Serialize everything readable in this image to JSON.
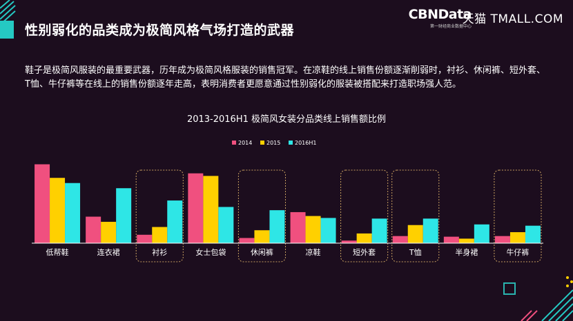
{
  "header": {
    "title": "性别弱化的品类成为极简风格气场打造的武器",
    "brand_main": "CBNData",
    "brand_sub": "第一财经商业数据中心",
    "partner": "天猫 TMALL.COM"
  },
  "body": {
    "text": "鞋子是极简风服装的最重要武器，历年成为极简风格服装的销售冠军。在凉鞋的线上销售份额逐渐削弱时，衬衫、休闲裤、短外套、T恤、牛仔裤等在线上的销售份额逐年走高，表明消费者更愿意通过性别弱化的服装被搭配来打造职场强人范。"
  },
  "chart_data": {
    "type": "bar",
    "title": "2013-2016H1 极简风女装分品类线上销售额比例",
    "categories": [
      "低帮鞋",
      "连衣裙",
      "衬衫",
      "女士包袋",
      "休闲裤",
      "凉鞋",
      "短外套",
      "T恤",
      "半身裙",
      "牛仔裤"
    ],
    "series": [
      {
        "name": "2014",
        "color": "#f0507f",
        "values": [
          12.2,
          4.1,
          1.3,
          10.8,
          0.8,
          4.8,
          0.4,
          1.1,
          1.0,
          1.1
        ]
      },
      {
        "name": "2015",
        "color": "#ffd000",
        "values": [
          10.1,
          3.3,
          2.5,
          10.4,
          2.0,
          4.2,
          1.5,
          2.8,
          0.7,
          1.7
        ]
      },
      {
        "name": "2016H1",
        "color": "#2ee6e6",
        "values": [
          9.3,
          8.5,
          6.6,
          5.6,
          5.1,
          3.9,
          3.8,
          3.8,
          2.9,
          2.7
        ]
      }
    ],
    "highlighted_categories": [
      "衬衫",
      "休闲裤",
      "短外套",
      "T恤",
      "牛仔裤"
    ],
    "ylim": [
      0,
      13
    ],
    "legend_position": "top-center",
    "grid": false
  },
  "colors": {
    "background": "#1c0d1e",
    "accent_teal": "#25c9c3",
    "highlight_frame": "#c8a060"
  }
}
